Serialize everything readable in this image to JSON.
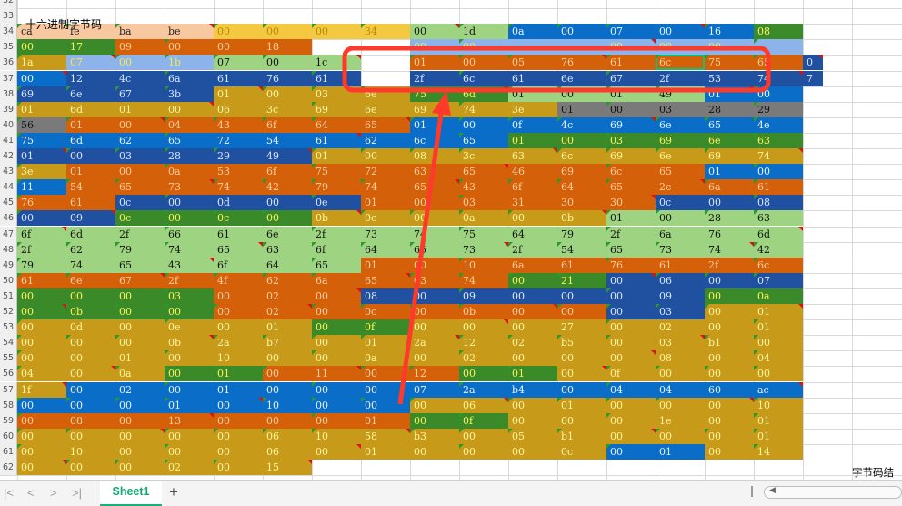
{
  "sheet": {
    "title": "十六进制字节码",
    "side_note": "字节码结构",
    "tab": "Sheet1",
    "add_icon": "+",
    "nav": {
      "first": "|<",
      "prev": "<",
      "next": ">",
      "last": ">|"
    },
    "selected_cell": "6c",
    "row_numbers": [
      "32",
      "33",
      "34",
      "35",
      "36",
      "37",
      "38",
      "39",
      "40",
      "41",
      "42",
      "43",
      "44",
      "45",
      "46",
      "47",
      "48",
      "49",
      "50",
      "51",
      "52",
      "53",
      "54",
      "55",
      "56",
      "57",
      "58",
      "59",
      "60",
      "61",
      "62"
    ],
    "rows": [
      [],
      [],
      [
        "ca",
        "fe",
        "ba",
        "be",
        "00",
        "00",
        "00",
        "34",
        "00",
        "1d",
        "0a",
        "00",
        "07",
        "00",
        "16",
        "08"
      ],
      [
        "00",
        "17",
        "09",
        "00",
        "00",
        "18",
        "",
        "",
        "09",
        "00",
        "",
        "",
        "09",
        "00",
        "00",
        ""
      ],
      [
        "1a",
        "07",
        "00",
        "1b",
        "07",
        "00",
        "1c",
        "",
        "01",
        "00",
        "05",
        "76",
        "61",
        "6c",
        "75",
        "65",
        "0"
      ],
      [
        "00",
        "12",
        "4c",
        "6a",
        "61",
        "76",
        "61",
        "",
        "2f",
        "6c",
        "61",
        "6e",
        "67",
        "2f",
        "53",
        "74",
        "7"
      ],
      [
        "69",
        "6e",
        "67",
        "3b",
        "01",
        "00",
        "03",
        "6e",
        "75",
        "6d",
        "01",
        "00",
        "01",
        "49",
        "01",
        "00"
      ],
      [
        "01",
        "6d",
        "01",
        "00",
        "06",
        "3c",
        "69",
        "6e",
        "69",
        "74",
        "3e",
        "01",
        "00",
        "03",
        "28",
        "29"
      ],
      [
        "56",
        "01",
        "00",
        "04",
        "43",
        "6f",
        "64",
        "65",
        "01",
        "00",
        "0f",
        "4c",
        "69",
        "6e",
        "65",
        "4e"
      ],
      [
        "75",
        "6d",
        "62",
        "65",
        "72",
        "54",
        "61",
        "62",
        "6c",
        "65",
        "01",
        "00",
        "03",
        "69",
        "6e",
        "63"
      ],
      [
        "01",
        "00",
        "03",
        "28",
        "29",
        "49",
        "01",
        "00",
        "08",
        "3c",
        "63",
        "6c",
        "69",
        "6e",
        "69",
        "74"
      ],
      [
        "3e",
        "01",
        "00",
        "0a",
        "53",
        "6f",
        "75",
        "72",
        "63",
        "65",
        "46",
        "69",
        "6c",
        "65",
        "01",
        "00"
      ],
      [
        "11",
        "54",
        "65",
        "73",
        "74",
        "42",
        "79",
        "74",
        "65",
        "43",
        "6f",
        "64",
        "65",
        "2e",
        "6a",
        "61"
      ],
      [
        "76",
        "61",
        "0c",
        "00",
        "0d",
        "00",
        "0e",
        "01",
        "00",
        "03",
        "31",
        "30",
        "30",
        "0c",
        "00",
        "08"
      ],
      [
        "00",
        "09",
        "0c",
        "00",
        "0c",
        "00",
        "0b",
        "0c",
        "00",
        "0a",
        "00",
        "0b",
        "01",
        "00",
        "28",
        "63"
      ],
      [
        "6f",
        "6d",
        "2f",
        "66",
        "61",
        "6e",
        "2f",
        "73",
        "74",
        "75",
        "64",
        "79",
        "2f",
        "6a",
        "76",
        "6d"
      ],
      [
        "2f",
        "62",
        "79",
        "74",
        "65",
        "63",
        "6f",
        "64",
        "65",
        "73",
        "2f",
        "54",
        "65",
        "73",
        "74",
        "42"
      ],
      [
        "79",
        "74",
        "65",
        "43",
        "6f",
        "64",
        "65",
        "01",
        "00",
        "10",
        "6a",
        "61",
        "76",
        "61",
        "2f",
        "6c"
      ],
      [
        "61",
        "6e",
        "67",
        "2f",
        "4f",
        "62",
        "6a",
        "65",
        "63",
        "74",
        "00",
        "21",
        "00",
        "06",
        "00",
        "07"
      ],
      [
        "00",
        "00",
        "00",
        "03",
        "00",
        "02",
        "00",
        "08",
        "00",
        "09",
        "00",
        "00",
        "00",
        "09",
        "00",
        "0a"
      ],
      [
        "00",
        "0b",
        "00",
        "00",
        "00",
        "02",
        "00",
        "0c",
        "00",
        "0b",
        "00",
        "00",
        "00",
        "03",
        "00",
        "01"
      ],
      [
        "00",
        "0d",
        "00",
        "0e",
        "00",
        "01",
        "00",
        "0f",
        "00",
        "00",
        "00",
        "27",
        "00",
        "02",
        "00",
        "01"
      ],
      [
        "00",
        "00",
        "00",
        "0b",
        "2a",
        "b7",
        "00",
        "01",
        "2a",
        "12",
        "02",
        "b5",
        "00",
        "03",
        "b1",
        "00"
      ],
      [
        "00",
        "00",
        "01",
        "00",
        "10",
        "00",
        "00",
        "0a",
        "00",
        "02",
        "00",
        "00",
        "00",
        "08",
        "00",
        "04"
      ],
      [
        "04",
        "00",
        "0a",
        "00",
        "01",
        "00",
        "11",
        "00",
        "12",
        "00",
        "01",
        "00",
        "0f",
        "00",
        "00",
        "00"
      ],
      [
        "1f",
        "00",
        "02",
        "00",
        "01",
        "00",
        "00",
        "00",
        "07",
        "2a",
        "b4",
        "00",
        "04",
        "04",
        "60",
        "ac"
      ],
      [
        "00",
        "00",
        "00",
        "01",
        "00",
        "10",
        "00",
        "00",
        "00",
        "06",
        "00",
        "01",
        "00",
        "00",
        "00",
        "10"
      ],
      [
        "00",
        "08",
        "00",
        "13",
        "00",
        "00",
        "00",
        "01",
        "00",
        "0f",
        "00",
        "00",
        "00",
        "1e",
        "00",
        "01"
      ],
      [
        "00",
        "00",
        "00",
        "00",
        "00",
        "06",
        "10",
        "58",
        "b3",
        "00",
        "05",
        "b1",
        "00",
        "00",
        "00",
        "01"
      ],
      [
        "00",
        "10",
        "00",
        "00",
        "00",
        "06",
        "00",
        "01",
        "00",
        "00",
        "00",
        "0c",
        "00",
        "01",
        "00",
        "14"
      ],
      [
        "00",
        "00",
        "00",
        "02",
        "00",
        "15"
      ]
    ]
  },
  "colors": {
    "peach": "#f8c8a0",
    "gold": "#f5c842",
    "mustard": "#c89a1a",
    "orange": "#d4600a",
    "lightgreen": "#9ed481",
    "green": "#3a8a2a",
    "blue": "#0a6ec8",
    "navy": "#2050a0",
    "lightblue": "#8cb4ea",
    "gray": "#7a7a7a",
    "annotation": "#ff3a2a",
    "accent": "#12b27a"
  },
  "icons": {
    "add": "plus-icon",
    "first": "first-sheet-icon",
    "prev": "prev-sheet-icon",
    "next": "next-sheet-icon",
    "last": "last-sheet-icon"
  }
}
